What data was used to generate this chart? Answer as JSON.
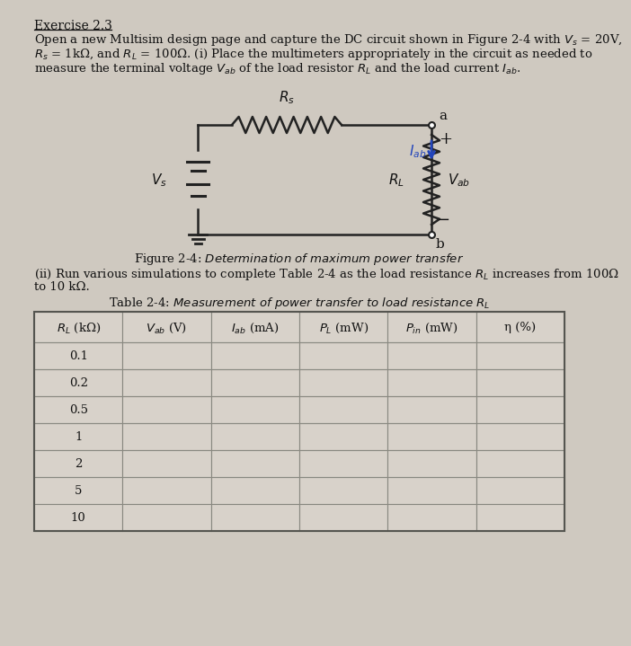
{
  "title": "Exercise 2.3",
  "paragraph1": "Open a new Multisim design page and capture the DC circuit shown in Figure 2-4 with $V_s$ = 20V,",
  "paragraph2": "$R_s$ = 1kΩ, and $R_L$ = 100Ω. (i) Place the multimeters appropriately in the circuit as needed to",
  "paragraph3": "measure the terminal voltage $V_{ab}$ of the load resistor $R_L$ and the load current $I_{ab}$.",
  "part_ii": "(ii) Run various simulations to complete Table 2-4 as the load resistance $R_L$ increases from 100Ω",
  "part_ii2": "to 10 kΩ.",
  "col_headers": [
    "$R_L$ (kΩ)",
    "$V_{ab}$ (V)",
    "$I_{ab}$ (mA)",
    "$P_L$ (mW)",
    "$P_{in}$ (mW)",
    "η (%)"
  ],
  "row_values": [
    "0.1",
    "0.2",
    "0.5",
    "1",
    "2",
    "5",
    "10"
  ],
  "bg_color": "#cfc9c0",
  "text_color": "#111111",
  "table_bg": "#d8d2ca",
  "circuit_wire_color": "#222222",
  "arrow_color": "#2244bb"
}
